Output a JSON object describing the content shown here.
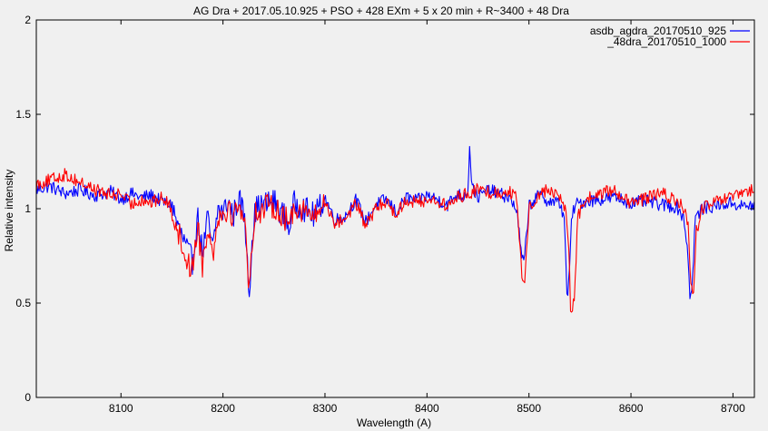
{
  "chart_data": {
    "type": "line",
    "title": "AG Dra + 2017.05.10.925 + PSO + 428 EXm + 5 x 20 min + R~3400 + 48 Dra",
    "xlabel": "Wavelength (A)",
    "ylabel": "Relative intensity",
    "xlim": [
      8017,
      8721
    ],
    "ylim": [
      0,
      2
    ],
    "xticks": [
      8100,
      8200,
      8300,
      8400,
      8500,
      8600,
      8700
    ],
    "yticks": [
      0,
      0.5,
      1,
      1.5,
      2
    ],
    "ytick_labels": [
      "0",
      "0.5",
      "1",
      "1.5",
      "2"
    ],
    "grid": false,
    "legend_position": "top-right",
    "colors": {
      "background": "#f0f0f0",
      "axis": "#000000"
    },
    "series": [
      {
        "name": "asdb_agdra_20170510_925",
        "color": "#0000ff",
        "x": [
          8017,
          8030,
          8045,
          8060,
          8075,
          8090,
          8100,
          8110,
          8120,
          8130,
          8140,
          8150,
          8155,
          8160,
          8165,
          8170,
          8175,
          8180,
          8185,
          8190,
          8195,
          8200,
          8205,
          8210,
          8215,
          8220,
          8224,
          8226,
          8228,
          8232,
          8240,
          8250,
          8260,
          8265,
          8270,
          8280,
          8290,
          8300,
          8310,
          8320,
          8330,
          8340,
          8350,
          8360,
          8370,
          8380,
          8390,
          8400,
          8410,
          8420,
          8430,
          8435,
          8440,
          8442,
          8444,
          8450,
          8460,
          8470,
          8480,
          8488,
          8492,
          8495,
          8500,
          8510,
          8520,
          8530,
          8535,
          8537,
          8539,
          8542,
          8545,
          8555,
          8570,
          8585,
          8600,
          8615,
          8630,
          8645,
          8652,
          8656,
          8658,
          8660,
          8663,
          8670,
          8685,
          8700,
          8710,
          8721
        ],
        "values": [
          1.1,
          1.12,
          1.08,
          1.1,
          1.07,
          1.09,
          1.05,
          1.08,
          1.06,
          1.07,
          1.04,
          1.02,
          0.92,
          0.85,
          0.78,
          0.72,
          0.96,
          0.76,
          0.95,
          0.78,
          1.0,
          0.98,
          1.04,
          0.96,
          1.05,
          1.0,
          0.75,
          0.52,
          0.82,
          1.0,
          1.02,
          1.04,
          0.96,
          0.9,
          1.03,
          1.0,
          0.96,
          1.06,
          0.94,
          0.96,
          1.05,
          0.93,
          1.02,
          1.05,
          0.98,
          1.06,
          1.04,
          1.07,
          1.05,
          1.02,
          1.08,
          1.06,
          1.1,
          1.34,
          1.12,
          1.06,
          1.1,
          1.08,
          1.06,
          1.0,
          0.78,
          0.7,
          1.02,
          1.07,
          1.04,
          1.03,
          0.95,
          0.52,
          0.6,
          0.95,
          1.02,
          1.04,
          1.05,
          1.06,
          1.03,
          1.04,
          1.02,
          1.01,
          0.95,
          0.75,
          0.52,
          0.58,
          0.95,
          1.0,
          1.02,
          1.03,
          1.01,
          1.02
        ]
      },
      {
        "name": "_48dra_20170510_1000",
        "color": "#ff0000",
        "x": [
          8017,
          8030,
          8045,
          8060,
          8075,
          8090,
          8100,
          8110,
          8120,
          8130,
          8140,
          8150,
          8155,
          8160,
          8165,
          8170,
          8175,
          8180,
          8185,
          8190,
          8195,
          8200,
          8205,
          8210,
          8215,
          8220,
          8224,
          8226,
          8228,
          8232,
          8240,
          8250,
          8260,
          8265,
          8270,
          8280,
          8290,
          8300,
          8310,
          8320,
          8330,
          8340,
          8350,
          8360,
          8370,
          8380,
          8390,
          8400,
          8410,
          8420,
          8430,
          8440,
          8450,
          8460,
          8470,
          8480,
          8488,
          8493,
          8496,
          8500,
          8510,
          8520,
          8530,
          8536,
          8539,
          8541,
          8544,
          8548,
          8555,
          8570,
          8585,
          8600,
          8615,
          8630,
          8645,
          8652,
          8656,
          8659,
          8661,
          8664,
          8670,
          8685,
          8700,
          8710,
          8721
        ],
        "values": [
          1.13,
          1.15,
          1.18,
          1.14,
          1.1,
          1.07,
          1.08,
          1.02,
          1.05,
          1.03,
          1.06,
          1.0,
          0.9,
          0.8,
          0.72,
          0.68,
          0.92,
          0.7,
          0.92,
          0.75,
          0.98,
          0.96,
          1.02,
          0.94,
          1.04,
          0.98,
          0.72,
          0.56,
          0.8,
          0.98,
          1.0,
          1.02,
          0.95,
          0.92,
          1.02,
          0.99,
          0.95,
          1.04,
          0.92,
          0.95,
          1.03,
          0.91,
          1.0,
          1.04,
          0.97,
          1.05,
          1.03,
          1.05,
          1.04,
          1.01,
          1.06,
          1.08,
          1.1,
          1.09,
          1.08,
          1.1,
          1.05,
          0.65,
          0.62,
          1.0,
          1.08,
          1.1,
          1.06,
          1.0,
          0.8,
          0.44,
          0.5,
          0.95,
          1.05,
          1.08,
          1.1,
          1.02,
          1.06,
          1.08,
          1.04,
          1.0,
          0.9,
          0.6,
          0.5,
          0.88,
          1.0,
          1.04,
          1.06,
          1.08,
          1.1
        ]
      }
    ]
  }
}
